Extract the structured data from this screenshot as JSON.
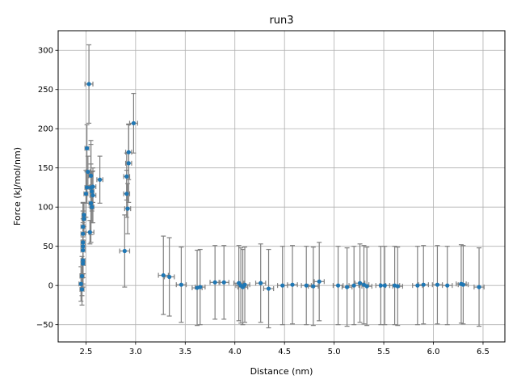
{
  "chart_data": {
    "type": "scatter",
    "title": "run3",
    "xlabel": "Distance (nm)",
    "ylabel": "Force (kJ/mol/nm)",
    "xlim": [
      2.22,
      6.72
    ],
    "ylim": [
      -72,
      325
    ],
    "xticks": [
      2.5,
      3.0,
      3.5,
      4.0,
      4.5,
      5.0,
      5.5,
      6.0,
      6.5
    ],
    "xtick_labels": [
      "2.5",
      "3.0",
      "3.5",
      "4.0",
      "4.5",
      "5.0",
      "5.5",
      "6.0",
      "6.5"
    ],
    "yticks": [
      -50,
      0,
      50,
      100,
      150,
      200,
      250,
      300
    ],
    "ytick_labels": [
      "−50",
      "0",
      "50",
      "100",
      "150",
      "200",
      "250",
      "300"
    ],
    "grid": true,
    "marker_color": "#1f77b4",
    "errorbar_color": "#808080",
    "series": [
      {
        "points": [
          {
            "x": 2.45,
            "y": 2,
            "yerr": 22,
            "xerr": 0.02
          },
          {
            "x": 2.46,
            "y": -5,
            "yerr": 20,
            "xerr": 0.02
          },
          {
            "x": 2.46,
            "y": 12,
            "yerr": 25,
            "xerr": 0.02
          },
          {
            "x": 2.47,
            "y": 28,
            "yerr": 30,
            "xerr": 0.02
          },
          {
            "x": 2.47,
            "y": 32,
            "yerr": 30,
            "xerr": 0.02
          },
          {
            "x": 2.47,
            "y": 45,
            "yerr": 35,
            "xerr": 0.02
          },
          {
            "x": 2.47,
            "y": 50,
            "yerr": 35,
            "xerr": 0.02
          },
          {
            "x": 2.47,
            "y": 55,
            "yerr": 40,
            "xerr": 0.02
          },
          {
            "x": 2.47,
            "y": 66,
            "yerr": 40,
            "xerr": 0.02
          },
          {
            "x": 2.47,
            "y": 75,
            "yerr": 30,
            "xerr": 0.02
          },
          {
            "x": 2.48,
            "y": 85,
            "yerr": 20,
            "xerr": 0.02
          },
          {
            "x": 2.48,
            "y": 90,
            "yerr": 15,
            "xerr": 0.02
          },
          {
            "x": 2.5,
            "y": 117,
            "yerr": 30,
            "xerr": 0.02
          },
          {
            "x": 2.51,
            "y": 175,
            "yerr": 30,
            "xerr": 0.02
          },
          {
            "x": 2.51,
            "y": 125,
            "yerr": 20,
            "xerr": 0.02
          },
          {
            "x": 2.52,
            "y": 145,
            "yerr": 20,
            "xerr": 0.02
          },
          {
            "x": 2.53,
            "y": 257,
            "yerr": 50,
            "xerr": 0.04
          },
          {
            "x": 2.54,
            "y": 68,
            "yerr": 15,
            "xerr": 0.04
          },
          {
            "x": 2.55,
            "y": 125,
            "yerr": 60,
            "xerr": 0.02
          },
          {
            "x": 2.55,
            "y": 140,
            "yerr": 40,
            "xerr": 0.02
          },
          {
            "x": 2.55,
            "y": 105,
            "yerr": 50,
            "xerr": 0.02
          },
          {
            "x": 2.56,
            "y": 120,
            "yerr": 25,
            "xerr": 0.02
          },
          {
            "x": 2.56,
            "y": 100,
            "yerr": 20,
            "xerr": 0.02
          },
          {
            "x": 2.57,
            "y": 126,
            "yerr": 20,
            "xerr": 0.03
          },
          {
            "x": 2.57,
            "y": 115,
            "yerr": 35,
            "xerr": 0.03
          },
          {
            "x": 2.64,
            "y": 135,
            "yerr": 30,
            "xerr": 0.03
          },
          {
            "x": 2.89,
            "y": 44,
            "yerr": 46,
            "xerr": 0.05
          },
          {
            "x": 2.91,
            "y": 117,
            "yerr": 30,
            "xerr": 0.03
          },
          {
            "x": 2.91,
            "y": 139,
            "yerr": 30,
            "xerr": 0.03
          },
          {
            "x": 2.92,
            "y": 98,
            "yerr": 32,
            "xerr": 0.03
          },
          {
            "x": 2.93,
            "y": 170,
            "yerr": 35,
            "xerr": 0.03
          },
          {
            "x": 2.93,
            "y": 156,
            "yerr": 50,
            "xerr": 0.03
          },
          {
            "x": 2.98,
            "y": 207,
            "yerr": 38,
            "xerr": 0.04
          },
          {
            "x": 3.28,
            "y": 13,
            "yerr": 50,
            "xerr": 0.05
          },
          {
            "x": 3.34,
            "y": 11,
            "yerr": 50,
            "xerr": 0.05
          },
          {
            "x": 3.46,
            "y": 1,
            "yerr": 48,
            "xerr": 0.05
          },
          {
            "x": 3.62,
            "y": -3,
            "yerr": 48,
            "xerr": 0.05
          },
          {
            "x": 3.65,
            "y": -2,
            "yerr": 48,
            "xerr": 0.05
          },
          {
            "x": 3.8,
            "y": 4,
            "yerr": 47,
            "xerr": 0.05
          },
          {
            "x": 3.89,
            "y": 4,
            "yerr": 47,
            "xerr": 0.05
          },
          {
            "x": 4.04,
            "y": 3,
            "yerr": 48,
            "xerr": 0.05
          },
          {
            "x": 4.06,
            "y": 0,
            "yerr": 48,
            "xerr": 0.05
          },
          {
            "x": 4.08,
            "y": -2,
            "yerr": 48,
            "xerr": 0.05
          },
          {
            "x": 4.1,
            "y": 1,
            "yerr": 48,
            "xerr": 0.05
          },
          {
            "x": 4.26,
            "y": 3,
            "yerr": 50,
            "xerr": 0.05
          },
          {
            "x": 4.34,
            "y": -4,
            "yerr": 50,
            "xerr": 0.05
          },
          {
            "x": 4.48,
            "y": 0,
            "yerr": 50,
            "xerr": 0.05
          },
          {
            "x": 4.58,
            "y": 1,
            "yerr": 50,
            "xerr": 0.05
          },
          {
            "x": 4.72,
            "y": 0,
            "yerr": 50,
            "xerr": 0.05
          },
          {
            "x": 4.79,
            "y": -1,
            "yerr": 50,
            "xerr": 0.05
          },
          {
            "x": 4.85,
            "y": 5,
            "yerr": 50,
            "xerr": 0.05
          },
          {
            "x": 5.04,
            "y": 0,
            "yerr": 50,
            "xerr": 0.05
          },
          {
            "x": 5.13,
            "y": -2,
            "yerr": 50,
            "xerr": 0.05
          },
          {
            "x": 5.2,
            "y": 0,
            "yerr": 50,
            "xerr": 0.05
          },
          {
            "x": 5.26,
            "y": 3,
            "yerr": 50,
            "xerr": 0.05
          },
          {
            "x": 5.3,
            "y": 1,
            "yerr": 50,
            "xerr": 0.05
          },
          {
            "x": 5.33,
            "y": -1,
            "yerr": 50,
            "xerr": 0.05
          },
          {
            "x": 5.47,
            "y": 0,
            "yerr": 50,
            "xerr": 0.05
          },
          {
            "x": 5.51,
            "y": 0,
            "yerr": 50,
            "xerr": 0.05
          },
          {
            "x": 5.61,
            "y": 0,
            "yerr": 50,
            "xerr": 0.05
          },
          {
            "x": 5.64,
            "y": -1,
            "yerr": 50,
            "xerr": 0.05
          },
          {
            "x": 5.84,
            "y": 0,
            "yerr": 50,
            "xerr": 0.05
          },
          {
            "x": 5.9,
            "y": 1,
            "yerr": 50,
            "xerr": 0.05
          },
          {
            "x": 6.04,
            "y": 1,
            "yerr": 50,
            "xerr": 0.05
          },
          {
            "x": 6.14,
            "y": 0,
            "yerr": 50,
            "xerr": 0.05
          },
          {
            "x": 6.28,
            "y": 2,
            "yerr": 50,
            "xerr": 0.05
          },
          {
            "x": 6.3,
            "y": 1,
            "yerr": 50,
            "xerr": 0.05
          },
          {
            "x": 6.46,
            "y": -2,
            "yerr": 50,
            "xerr": 0.05
          }
        ]
      }
    ]
  }
}
